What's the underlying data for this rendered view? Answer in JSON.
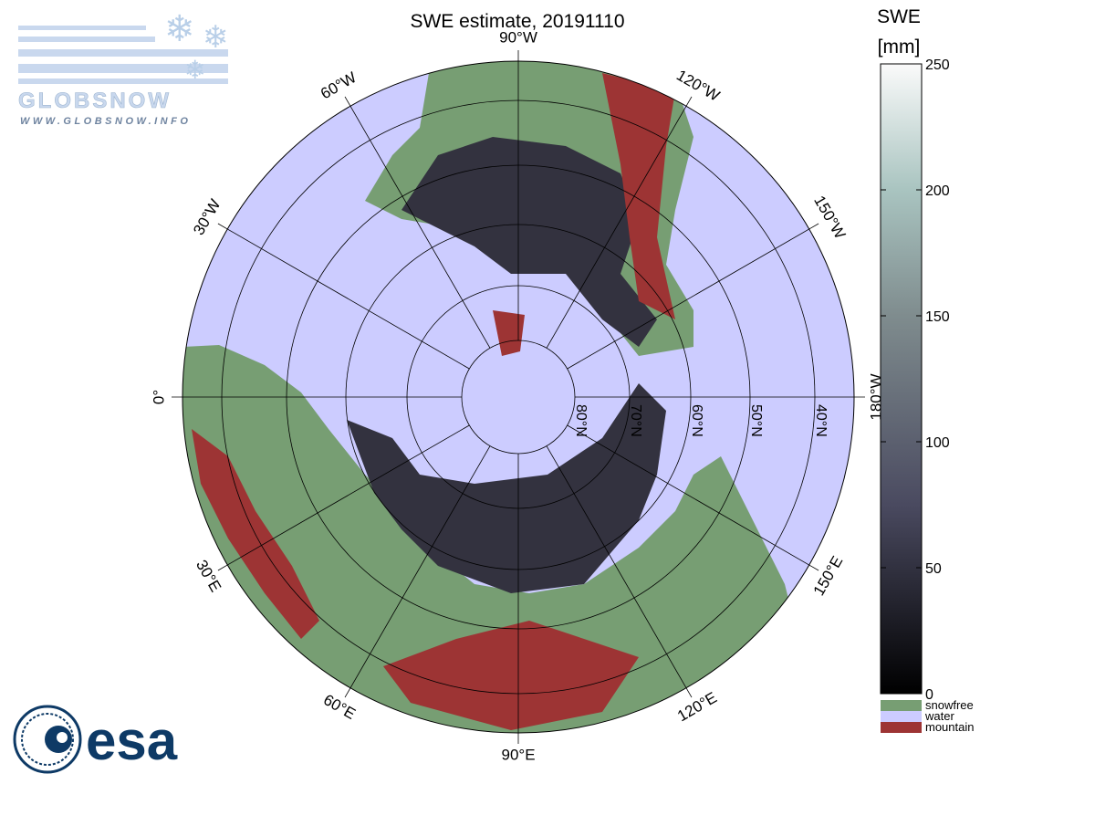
{
  "title": "SWE estimate, 20191110",
  "map": {
    "longitude_labels": [
      "90°W",
      "120°W",
      "150°W",
      "180°W",
      "150°E",
      "120°E",
      "90°E",
      "60°E",
      "30°E",
      "0°",
      "30°W",
      "60°W"
    ],
    "latitude_labels": [
      "80°N",
      "70°N",
      "60°N",
      "50°N",
      "40°N"
    ]
  },
  "colorbar": {
    "title": "SWE",
    "unit": "[mm]",
    "lim": [
      0,
      250
    ],
    "ticks": [
      0,
      50,
      100,
      150,
      200,
      250
    ],
    "legend": [
      {
        "name": "snowfree",
        "color": "#779e73"
      },
      {
        "name": "water",
        "color": "#ccccff"
      },
      {
        "name": "mountain",
        "color": "#9d3434"
      }
    ]
  },
  "logos": {
    "globsnow": "GLOBSNOW",
    "globsnow_url": "WWW.GLOBSNOW.INFO",
    "esa": "esa"
  }
}
